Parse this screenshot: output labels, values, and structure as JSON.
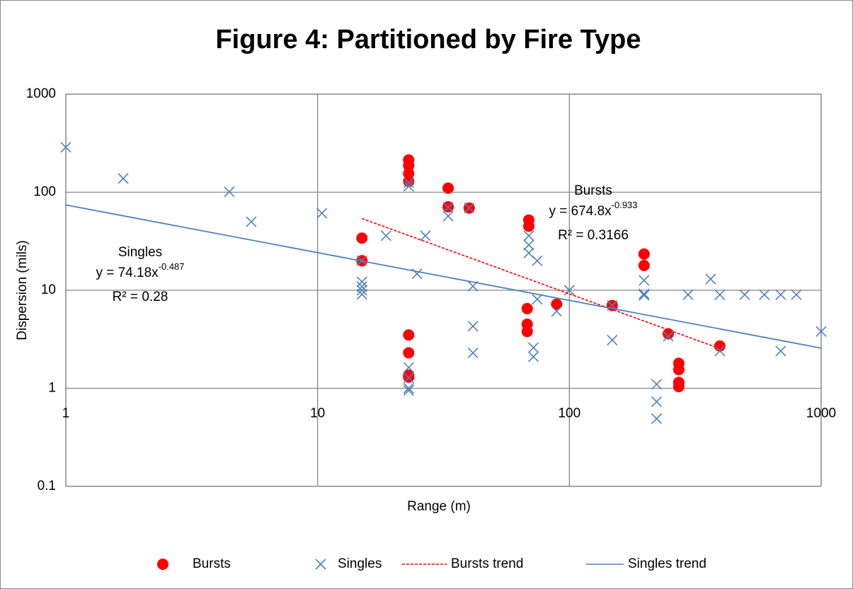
{
  "chart_data": {
    "type": "scatter",
    "title": "Figure 4: Partitioned by Fire Type",
    "x_label": "Range (m)",
    "y_label": "Dispersion (mils)",
    "xscale": "log",
    "yscale": "log",
    "grid": true,
    "legend": "bottom",
    "xlim": [
      1,
      1000
    ],
    "ylim": [
      0.1,
      1000
    ],
    "xticks": [
      1,
      10,
      100,
      1000
    ],
    "yticks": [
      0.1,
      1,
      10,
      100,
      1000
    ],
    "series": [
      {
        "name": "Bursts",
        "color": "#ff0000",
        "marker": "circle",
        "x": [
          15,
          15,
          23,
          23,
          23,
          23,
          23,
          23,
          23,
          23,
          33,
          33,
          40,
          68,
          68,
          68,
          69,
          69,
          89,
          148,
          198,
          198,
          247,
          272,
          272,
          272,
          272,
          396
        ],
        "values": [
          34,
          20,
          213,
          187,
          155,
          129,
          3.5,
          2.3,
          1.36,
          1.3,
          110,
          71,
          69,
          6.5,
          4.5,
          3.8,
          52,
          45,
          7.2,
          7,
          23.4,
          17.9,
          3.6,
          1.8,
          1.55,
          1.15,
          1.04,
          2.7
        ]
      },
      {
        "name": "Singles",
        "color": "#4f81bd",
        "marker": "x",
        "x": [
          1,
          1.69,
          4.46,
          5.45,
          10.4,
          15,
          15,
          15,
          15,
          15,
          18.7,
          23,
          23,
          23,
          23,
          23,
          23,
          26.8,
          24.8,
          33,
          33,
          40,
          41.4,
          41.4,
          41.4,
          69,
          69,
          69,
          74.5,
          74.5,
          72,
          72,
          89,
          100,
          148,
          148,
          198,
          198,
          198,
          247,
          222,
          222,
          222,
          296,
          364,
          396,
          396,
          497,
          595,
          691,
          691,
          797,
          1000
        ],
        "values": [
          287,
          138,
          101,
          50,
          61,
          20,
          12.2,
          10.9,
          10,
          9.1,
          36,
          125,
          115,
          1.63,
          1.28,
          1.0,
          0.95,
          36,
          14.7,
          70,
          57,
          69,
          11,
          4.3,
          2.3,
          36,
          29,
          24,
          20,
          8.1,
          2.6,
          2.1,
          6.1,
          10,
          7,
          3.1,
          12.6,
          9.2,
          8.9,
          3.4,
          1.1,
          0.73,
          0.49,
          9,
          13,
          9,
          2.4,
          9,
          9,
          9,
          2.4,
          9,
          3.8
        ]
      },
      {
        "name": "Bursts trend",
        "color": "#ff0000",
        "line": "dashed",
        "x": [
          15,
          400
        ],
        "values": [
          53.9,
          2.52
        ]
      },
      {
        "name": "Singles trend",
        "color": "#4f81bd",
        "line": "solid",
        "x": [
          1,
          1000
        ],
        "values": [
          74.18,
          2.57
        ]
      }
    ],
    "annotations": [
      {
        "name": "Singles",
        "equation": "y = 74.18x",
        "exponent": "-0.487",
        "r2": "R² = 0.28"
      },
      {
        "name": "Bursts",
        "equation": "y = 674.8x",
        "exponent": "-0.933",
        "r2": "R² = 0.3166"
      }
    ]
  }
}
